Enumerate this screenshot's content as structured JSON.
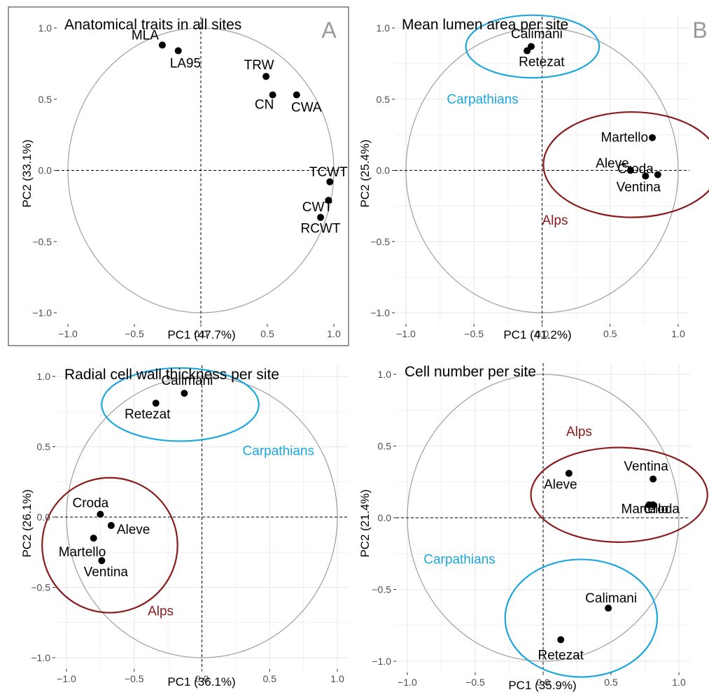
{
  "colors": {
    "alps": "#8B1A1A",
    "carpathians": "#1CA7DF",
    "circle": "#9E9E9E",
    "grid": "#EBEBEB",
    "point": "#000000",
    "panel_letter": "#999999"
  },
  "chart_data": [
    {
      "type": "scatter",
      "panel_letter": "A",
      "title": "Anatomical traits in all sites",
      "xlabel": "PC1 (47.7%)",
      "ylabel": "PC2 (33.1%)",
      "xlim": [
        -1.0,
        1.0
      ],
      "ylim": [
        -1.0,
        1.0
      ],
      "xticks": [
        "-1.0",
        "-0.5",
        "0.0",
        "0.5",
        "1.0"
      ],
      "yticks": [
        "-1.0",
        "-0.5",
        "0.0",
        "0.5",
        "1.0"
      ],
      "grid": false,
      "points": [
        {
          "label": "MLA",
          "x": -0.29,
          "y": 0.88
        },
        {
          "label": "LA95",
          "x": -0.17,
          "y": 0.84
        },
        {
          "label": "TRW",
          "x": 0.49,
          "y": 0.66
        },
        {
          "label": "CN",
          "x": 0.54,
          "y": 0.53
        },
        {
          "label": "CWA",
          "x": 0.72,
          "y": 0.53
        },
        {
          "label": "TCWT",
          "x": 0.97,
          "y": -0.08
        },
        {
          "label": "CWT",
          "x": 0.96,
          "y": -0.21
        },
        {
          "label": "RCWT",
          "x": 0.9,
          "y": -0.33
        }
      ],
      "groups": []
    },
    {
      "type": "scatter",
      "panel_letter": "B",
      "title": "Mean lumen area per site",
      "xlabel": "PC1 (41.2%)",
      "ylabel": "PC2 (25.4%)",
      "xlim": [
        -1.0,
        1.0
      ],
      "ylim": [
        -1.0,
        1.0
      ],
      "xticks": [
        "-1.0",
        "-0.5",
        "0.0",
        "0.5",
        "1.0"
      ],
      "yticks": [
        "-1.0",
        "-0.5",
        "0.0",
        "0.5",
        "1.0"
      ],
      "grid": true,
      "points": [
        {
          "label": "Calimani",
          "x": -0.08,
          "y": 0.87
        },
        {
          "label": "Retezat",
          "x": -0.11,
          "y": 0.84
        },
        {
          "label": "Martello",
          "x": 0.81,
          "y": 0.23
        },
        {
          "label": "Aleve",
          "x": 0.65,
          "y": 0.0
        },
        {
          "label": "Croda",
          "x": 0.85,
          "y": -0.03
        },
        {
          "label": "Ventina",
          "x": 0.76,
          "y": -0.04
        }
      ],
      "groups": [
        {
          "name": "Carpathians",
          "color_key": "carpathians",
          "cx": -0.07,
          "cy": 0.87,
          "rx": 0.49,
          "ry": 0.22
        },
        {
          "name": "Alps",
          "color_key": "alps",
          "cx": 0.66,
          "cy": 0.04,
          "rx": 0.65,
          "ry": 0.37
        }
      ],
      "group_labels": [
        {
          "name": "Carpathians",
          "color_key": "carpathians",
          "x": -0.7,
          "y": 0.47
        },
        {
          "name": "Alps",
          "color_key": "alps",
          "x": 0.0,
          "y": -0.38
        }
      ]
    },
    {
      "type": "scatter",
      "panel_letter": "",
      "title": "Radial cell wall thickness per site",
      "xlabel": "PC1 (36.1%)",
      "ylabel": "PC2 (26.1%)",
      "xlim": [
        -1.0,
        1.0
      ],
      "ylim": [
        -1.0,
        1.0
      ],
      "xticks": [
        "-1.0",
        "-0.5",
        "0.0",
        "0.5",
        "1.0"
      ],
      "yticks": [
        "-1.0",
        "-0.5",
        "0.0",
        "0.5",
        "1.0"
      ],
      "grid": true,
      "points": [
        {
          "label": "Calimani",
          "x": -0.13,
          "y": 0.88
        },
        {
          "label": "Retezat",
          "x": -0.34,
          "y": 0.81
        },
        {
          "label": "Croda",
          "x": -0.75,
          "y": 0.02
        },
        {
          "label": "Aleve",
          "x": -0.67,
          "y": -0.06
        },
        {
          "label": "Martello",
          "x": -0.8,
          "y": -0.15
        },
        {
          "label": "Ventina",
          "x": -0.74,
          "y": -0.31
        }
      ],
      "groups": [
        {
          "name": "Carpathians",
          "color_key": "carpathians",
          "cx": -0.16,
          "cy": 0.8,
          "rx": 0.58,
          "ry": 0.26
        },
        {
          "name": "Alps",
          "color_key": "alps",
          "cx": -0.68,
          "cy": -0.2,
          "rx": 0.5,
          "ry": 0.48
        }
      ],
      "group_labels": [
        {
          "name": "Carpathians",
          "color_key": "carpathians",
          "x": 0.3,
          "y": 0.44
        },
        {
          "name": "Alps",
          "color_key": "alps",
          "x": -0.4,
          "y": -0.7
        }
      ]
    },
    {
      "type": "scatter",
      "panel_letter": "",
      "title": "Cell number per site",
      "xlabel": "PC1 (35.9%)",
      "ylabel": "PC2 (21.4%)",
      "xlim": [
        -1.0,
        1.0
      ],
      "ylim": [
        -1.0,
        1.0
      ],
      "xticks": [
        "-1.0",
        "-0.5",
        "0.0",
        "0.5",
        "1.0"
      ],
      "yticks": [
        "-1.0",
        "-0.5",
        "0.0",
        "0.5",
        "1.0"
      ],
      "grid": true,
      "points": [
        {
          "label": "Aleve",
          "x": 0.19,
          "y": 0.31
        },
        {
          "label": "Ventina",
          "x": 0.81,
          "y": 0.27
        },
        {
          "label": "Croda",
          "x": 0.81,
          "y": 0.09
        },
        {
          "label": "Martello",
          "x": 0.78,
          "y": 0.09
        },
        {
          "label": "Calimani",
          "x": 0.48,
          "y": -0.63
        },
        {
          "label": "Retezat",
          "x": 0.13,
          "y": -0.85
        }
      ],
      "groups": [
        {
          "name": "Alps",
          "color_key": "alps",
          "cx": 0.56,
          "cy": 0.16,
          "rx": 0.65,
          "ry": 0.33
        },
        {
          "name": "Carpathians",
          "color_key": "carpathians",
          "cx": 0.28,
          "cy": -0.7,
          "rx": 0.56,
          "ry": 0.41
        }
      ],
      "group_labels": [
        {
          "name": "Alps",
          "color_key": "alps",
          "x": 0.17,
          "y": 0.57
        },
        {
          "name": "Carpathians",
          "color_key": "carpathians",
          "x": -0.88,
          "y": -0.32
        }
      ]
    }
  ]
}
